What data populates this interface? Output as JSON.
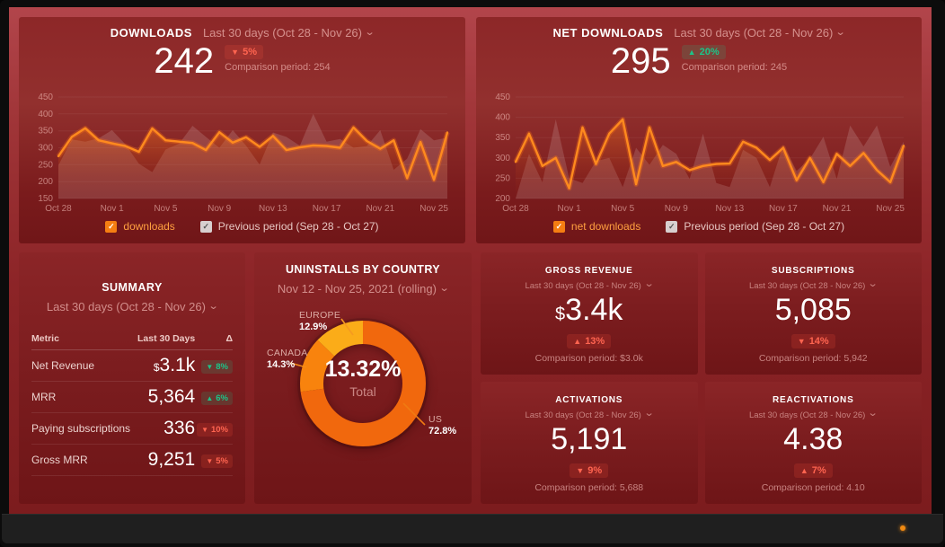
{
  "downloads": {
    "title": "DOWNLOADS",
    "range": "Last 30 days (Oct 28 - Nov 26)",
    "value": "242",
    "delta": {
      "arrow": "▼",
      "text": "5%",
      "tone": "red"
    },
    "comparison": "Comparison period: 254",
    "legend_series": "downloads",
    "legend_prev": "Previous period (Sep 28 - Oct 27)"
  },
  "net_downloads": {
    "title": "NET DOWNLOADS",
    "range": "Last 30 days (Oct 28 - Nov 26)",
    "value": "295",
    "delta": {
      "arrow": "▲",
      "text": "20%",
      "tone": "green"
    },
    "comparison": "Comparison period: 245",
    "legend_series": "net downloads",
    "legend_prev": "Previous period (Sep 28 - Oct 27)"
  },
  "summary": {
    "title": "SUMMARY",
    "range": "Last 30 days (Oct 28 - Nov 26)",
    "headers": [
      "Metric",
      "Last 30 Days",
      "Δ"
    ],
    "rows": [
      {
        "metric": "Net Revenue",
        "prefix": "$",
        "value": "3.1k",
        "delta": {
          "arrow": "▼",
          "text": "8%",
          "tone": "green"
        }
      },
      {
        "metric": "MRR",
        "prefix": "",
        "value": "5,364",
        "delta": {
          "arrow": "▲",
          "text": "6%",
          "tone": "green"
        }
      },
      {
        "metric": "Paying subscriptions",
        "prefix": "",
        "value": "336",
        "delta": {
          "arrow": "▼",
          "text": "10%",
          "tone": "red"
        }
      },
      {
        "metric": "Gross MRR",
        "prefix": "",
        "value": "9,251",
        "delta": {
          "arrow": "▼",
          "text": "5%",
          "tone": "red"
        }
      }
    ]
  },
  "uninstalls": {
    "title": "UNINSTALLS BY COUNTRY",
    "range": "Nov 12 - Nov 25, 2021 (rolling)",
    "center_value": "13.32%",
    "center_label": "Total",
    "slices": [
      {
        "name": "EUROPE",
        "pct": "12.9%"
      },
      {
        "name": "CANADA",
        "pct": "14.3%"
      },
      {
        "name": "US",
        "pct": "72.8%"
      }
    ]
  },
  "metrics": [
    {
      "title": "GROSS REVENUE",
      "range": "Last 30 days (Oct 28 - Nov 26)",
      "prefix": "$",
      "value": "3.4k",
      "delta": {
        "arrow": "▲",
        "text": "13%",
        "tone": "red"
      },
      "comparison": "Comparison period: $3.0k"
    },
    {
      "title": "SUBSCRIPTIONS",
      "range": "Last 30 days (Oct 28 - Nov 26)",
      "prefix": "",
      "value": "5,085",
      "delta": {
        "arrow": "▼",
        "text": "14%",
        "tone": "red"
      },
      "comparison": "Comparison period: 5,942"
    },
    {
      "title": "ACTIVATIONS",
      "range": "Last 30 days (Oct 28 - Nov 26)",
      "prefix": "",
      "value": "5,191",
      "delta": {
        "arrow": "▼",
        "text": "9%",
        "tone": "red"
      },
      "comparison": "Comparison period: 5,688"
    },
    {
      "title": "REACTIVATIONS",
      "range": "Last 30 days (Oct 28 - Nov 26)",
      "prefix": "",
      "value": "4.38",
      "delta": {
        "arrow": "▲",
        "text": "7%",
        "tone": "red"
      },
      "comparison": "Comparison period: 4.10"
    }
  ],
  "chart_data": [
    {
      "type": "line",
      "title": "Downloads — Last 30 days",
      "ylim": [
        150,
        450
      ],
      "yticks": [
        150,
        200,
        250,
        300,
        350,
        400,
        450
      ],
      "xticks": [
        "Oct 28",
        "Nov 1",
        "Nov 5",
        "Nov 9",
        "Nov 13",
        "Nov 17",
        "Nov 21",
        "Nov 25"
      ],
      "xtick_idx": [
        0,
        4,
        8,
        12,
        16,
        20,
        24,
        28
      ],
      "series": [
        {
          "name": "downloads",
          "color": "#ff8a1e",
          "values": [
            275,
            332,
            358,
            322,
            313,
            305,
            288,
            357,
            322,
            318,
            314,
            293,
            346,
            315,
            331,
            303,
            335,
            293,
            301,
            307,
            305,
            300,
            360,
            320,
            297,
            322,
            210,
            317,
            205,
            345
          ]
        },
        {
          "name": "Previous period (Sep 28 - Oct 27)",
          "style": "area",
          "color": "rgba(238,220,218,0.17)",
          "values": [
            248,
            325,
            318,
            328,
            352,
            310,
            253,
            228,
            295,
            312,
            365,
            332,
            300,
            352,
            306,
            250,
            345,
            332,
            306,
            400,
            318,
            326,
            300,
            305,
            352,
            235,
            268,
            355,
            322,
            330
          ]
        }
      ]
    },
    {
      "type": "line",
      "title": "Net Downloads — Last 30 days",
      "ylim": [
        200,
        450
      ],
      "yticks": [
        200,
        250,
        300,
        350,
        400,
        450
      ],
      "xticks": [
        "Oct 28",
        "Nov 1",
        "Nov 5",
        "Nov 9",
        "Nov 13",
        "Nov 17",
        "Nov 21",
        "Nov 25"
      ],
      "xtick_idx": [
        0,
        4,
        8,
        12,
        16,
        20,
        24,
        28
      ],
      "series": [
        {
          "name": "net downloads",
          "color": "#ff8a1e",
          "values": [
            290,
            360,
            280,
            300,
            225,
            375,
            285,
            360,
            395,
            235,
            375,
            280,
            290,
            270,
            280,
            285,
            286,
            340,
            325,
            295,
            325,
            245,
            300,
            240,
            310,
            280,
            312,
            270,
            240,
            330
          ]
        },
        {
          "name": "Previous period (Sep 28 - Oct 27)",
          "style": "area",
          "color": "rgba(238,220,218,0.17)",
          "values": [
            200,
            310,
            240,
            395,
            250,
            238,
            292,
            300,
            228,
            325,
            283,
            332,
            310,
            248,
            360,
            238,
            228,
            320,
            300,
            228,
            332,
            268,
            298,
            352,
            248,
            380,
            328,
            380,
            278,
            340
          ]
        }
      ]
    },
    {
      "type": "pie",
      "title": "Uninstalls by country",
      "labels": [
        "US",
        "CANADA",
        "EUROPE"
      ],
      "values": [
        72.8,
        14.3,
        12.9
      ],
      "colors": [
        "#f1680d",
        "#f8830d",
        "#fbac18"
      ],
      "center_value": "13.32%",
      "center_label": "Total"
    }
  ]
}
